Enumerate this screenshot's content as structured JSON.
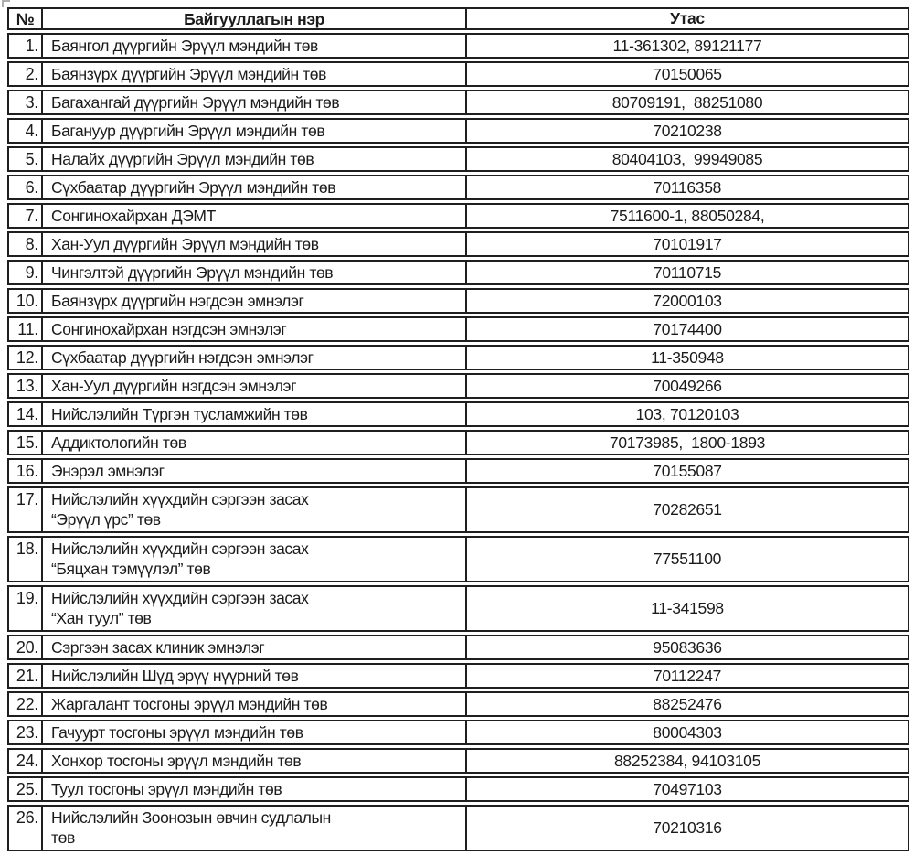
{
  "page": {
    "background_color": "#ffffff",
    "text_color": "#1b1b1b",
    "border_color": "#1f1f1f",
    "handle_mark_color": "#9a9a9a"
  },
  "table": {
    "columns": [
      "№",
      "Байгууллагын нэр",
      "Утас"
    ],
    "rows": [
      {
        "no": "1.",
        "name": "Баянгол дүүргийн Эрүүл мэндийн төв",
        "phone": "11-361302, 89121177"
      },
      {
        "no": "2.",
        "name": "Баянзүрх дүүргийн Эрүүл мэндийн төв",
        "phone": "70150065"
      },
      {
        "no": "3.",
        "name": "Багахангай дүүргийн Эрүүл мэндийн төв",
        "phone": "80709191,  88251080"
      },
      {
        "no": "4.",
        "name": "Багануур дүүргийн Эрүүл мэндийн төв",
        "phone": "70210238"
      },
      {
        "no": "5.",
        "name": "Налайх дүүргийн Эрүүл мэндийн төв",
        "phone": "80404103,  99949085"
      },
      {
        "no": "6.",
        "name": "Сүхбаатар дүүргийн Эрүүл мэндийн төв",
        "phone": "70116358"
      },
      {
        "no": "7.",
        "name": "Сонгинохайрхан ДЭМТ",
        "phone": "7511600-1, 88050284,"
      },
      {
        "no": "8.",
        "name": "Хан-Уул дүүргийн Эрүүл мэндийн төв",
        "phone": "70101917"
      },
      {
        "no": "9.",
        "name": "Чингэлтэй дүүргийн Эрүүл мэндийн төв",
        "phone": "70110715"
      },
      {
        "no": "10.",
        "name": "Баянзүрх дүүргийн нэгдсэн эмнэлэг",
        "phone": "72000103"
      },
      {
        "no": "11.",
        "name": "Сонгинохайрхан нэгдсэн эмнэлэг",
        "phone": "70174400"
      },
      {
        "no": "12.",
        "name": "Сүхбаатар дүүргийн нэгдсэн эмнэлэг",
        "phone": "11-350948"
      },
      {
        "no": "13.",
        "name": "Хан-Уул дүүргийн нэгдсэн эмнэлэг",
        "phone": "70049266"
      },
      {
        "no": "14.",
        "name": "Нийслэлийн Түргэн тусламжийн төв",
        "phone": "103, 70120103"
      },
      {
        "no": "15.",
        "name": "Аддиктологийн төв",
        "phone": "70173985,  1800-1893"
      },
      {
        "no": "16.",
        "name": "Энэрэл эмнэлэг",
        "phone": "70155087"
      },
      {
        "no": "17.",
        "name": "Нийслэлийн хүүхдийн сэргээн засах",
        "name_line2": "“Эрүүл үрс” төв",
        "phone": "70282651"
      },
      {
        "no": "18.",
        "name": "Нийслэлийн хүүхдийн сэргээн засах",
        "name_line2": "“Бяцхан тэмүүлэл” төв",
        "phone": "77551100"
      },
      {
        "no": "19.",
        "name": "Нийслэлийн хүүхдийн сэргээн засах",
        "name_line2": "“Хан туул” төв",
        "phone": "11-341598"
      },
      {
        "no": "20.",
        "name": "Сэргээн засах клиник эмнэлэг",
        "phone": "95083636"
      },
      {
        "no": "21.",
        "name": "Нийслэлийн Шүд эрүү нүүрний төв",
        "phone": "70112247"
      },
      {
        "no": "22.",
        "name": "Жаргалант тосгоны эрүүл мэндийн төв",
        "phone": "88252476"
      },
      {
        "no": "23.",
        "name": "Гачуурт тосгоны эрүүл мэндийн төв",
        "phone": "80004303"
      },
      {
        "no": "24.",
        "name": "Хонхор тосгоны эрүүл мэндийн төв",
        "phone": "88252384, 94103105"
      },
      {
        "no": "25.",
        "name": "Туул тосгоны эрүүл мэндийн төв",
        "phone": "70497103"
      },
      {
        "no": "26.",
        "name": "Нийслэлийн Зоонозын өвчин судлалын",
        "name_line2": "төв",
        "phone": "70210316"
      }
    ]
  }
}
